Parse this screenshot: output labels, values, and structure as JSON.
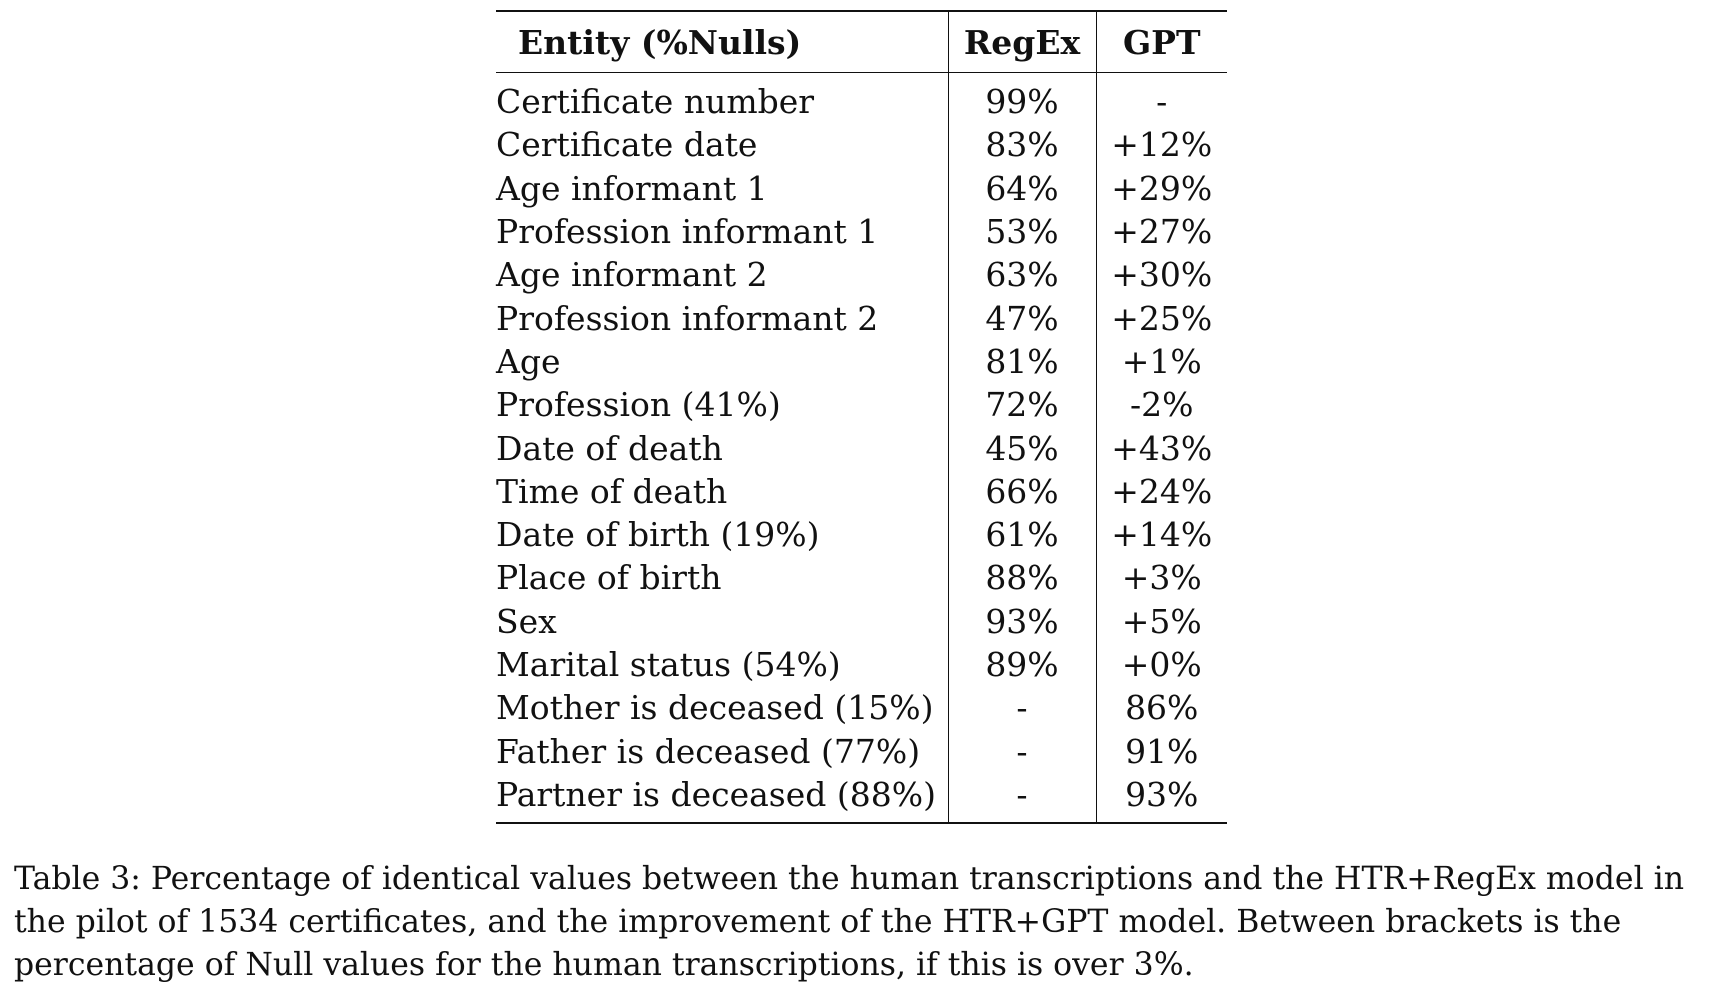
{
  "table": {
    "headers": [
      "Entity (%Nulls)",
      "RegEx",
      "GPT"
    ],
    "rows": [
      {
        "entity": "Certificate number",
        "regex": "99%",
        "gpt": "-"
      },
      {
        "entity": "Certificate date",
        "regex": "83%",
        "gpt": "+12%"
      },
      {
        "entity": "Age informant 1",
        "regex": "64%",
        "gpt": "+29%"
      },
      {
        "entity": "Profession informant 1",
        "regex": "53%",
        "gpt": "+27%"
      },
      {
        "entity": "Age informant 2",
        "regex": "63%",
        "gpt": "+30%"
      },
      {
        "entity": "Profession informant 2",
        "regex": "47%",
        "gpt": "+25%"
      },
      {
        "entity": "Age",
        "regex": "81%",
        "gpt": "+1%"
      },
      {
        "entity": "Profession (41%)",
        "regex": "72%",
        "gpt": "-2%"
      },
      {
        "entity": "Date of death",
        "regex": "45%",
        "gpt": "+43%"
      },
      {
        "entity": "Time of death",
        "regex": "66%",
        "gpt": "+24%"
      },
      {
        "entity": "Date of birth (19%)",
        "regex": "61%",
        "gpt": "+14%"
      },
      {
        "entity": "Place of birth",
        "regex": "88%",
        "gpt": "+3%"
      },
      {
        "entity": "Sex",
        "regex": "93%",
        "gpt": "+5%"
      },
      {
        "entity": "Marital status (54%)",
        "regex": "89%",
        "gpt": "+0%"
      },
      {
        "entity": "Mother is deceased (15%)",
        "regex": "-",
        "gpt": "86%"
      },
      {
        "entity": "Father is deceased (77%)",
        "regex": "-",
        "gpt": "91%"
      },
      {
        "entity": "Partner is deceased (88%)",
        "regex": "-",
        "gpt": "93%"
      }
    ]
  },
  "caption": "Table 3: Percentage of identical values between the human transcriptions and the HTR+RegEx model in the pilot of 1534 certificates, and the improvement of the HTR+GPT model. Between brackets is the percentage of Null values for the human transcriptions, if this is over 3%."
}
